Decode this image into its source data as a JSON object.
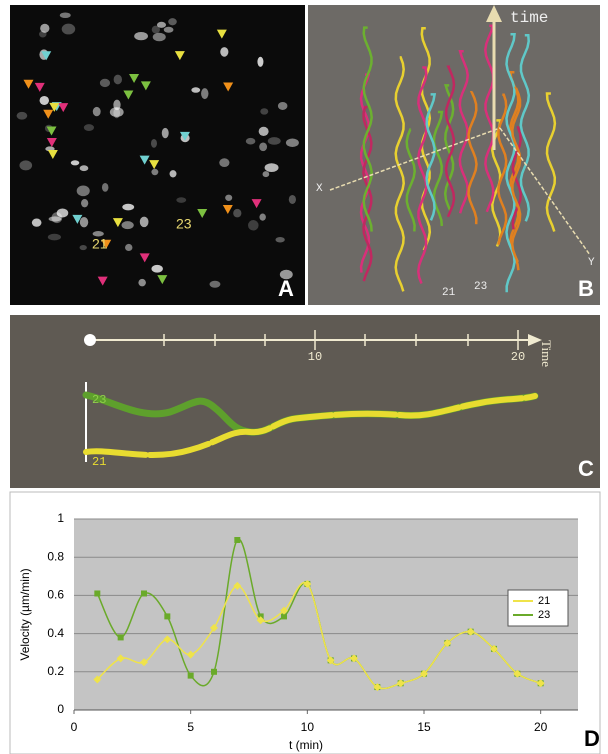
{
  "panels": {
    "a": {
      "label": "A",
      "cell_1": "21",
      "cell_2": "23"
    },
    "b": {
      "label": "B",
      "axis_time": "time",
      "axis_x": "X",
      "axis_y": "Y",
      "cell_1": "21",
      "cell_2": "23"
    },
    "c": {
      "label": "C",
      "axis_time": "Time",
      "tick_1": "10",
      "tick_2": "20",
      "cell_2": "23",
      "cell_1": "21"
    },
    "d": {
      "label": "D"
    }
  },
  "chart_data": {
    "type": "line",
    "x": [
      1,
      2,
      3,
      4,
      5,
      6,
      7,
      8,
      9,
      10,
      11,
      12,
      13,
      14,
      15,
      16,
      17,
      18,
      19,
      20
    ],
    "series": [
      {
        "name": "21",
        "color": "#efe34a",
        "values": [
          0.16,
          0.27,
          0.25,
          0.37,
          0.29,
          0.43,
          0.65,
          0.47,
          0.52,
          0.66,
          0.26,
          0.27,
          0.12,
          0.14,
          0.19,
          0.35,
          0.41,
          0.32,
          0.19,
          0.14
        ]
      },
      {
        "name": "23",
        "color": "#6aaa2a",
        "values": [
          0.61,
          0.38,
          0.61,
          0.49,
          0.18,
          0.2,
          0.89,
          0.49,
          0.49,
          0.66,
          0.26,
          0.27,
          0.12,
          0.14,
          0.19,
          0.35,
          0.41,
          0.32,
          0.19,
          0.14
        ]
      }
    ],
    "xlabel": "t (min)",
    "ylabel": "Velocity (µm/min)",
    "xlim": [
      0,
      21.6
    ],
    "xticks": [
      0,
      5,
      10,
      15,
      20
    ],
    "ylim": [
      0,
      1
    ],
    "yticks": [
      0,
      0.2,
      0.4,
      0.6,
      0.8,
      1
    ],
    "grid": true,
    "legend": "top-right"
  }
}
